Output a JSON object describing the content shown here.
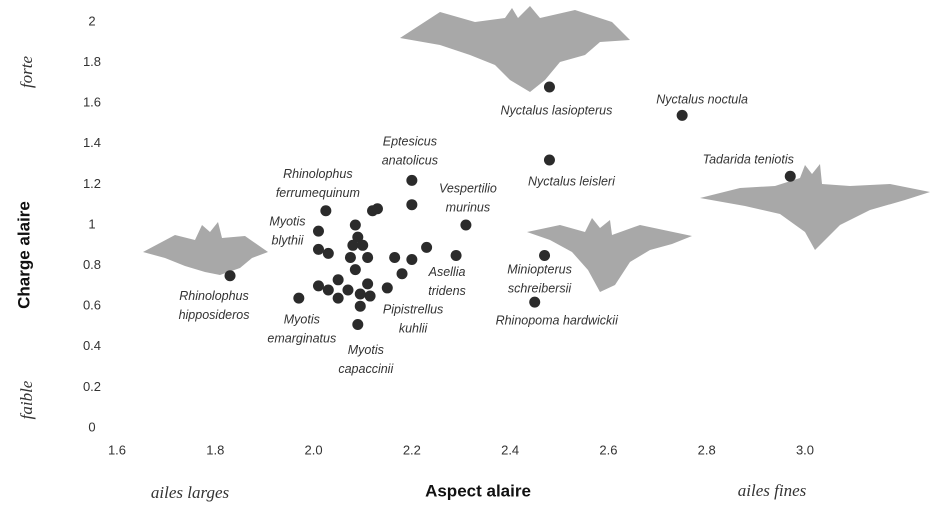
{
  "chart_data": {
    "type": "scatter",
    "xlabel": "Aspect alaire",
    "ylabel": "Charge alaire",
    "x_low_label": "ailes larges",
    "x_high_label": "ailes fines",
    "y_high_label": "forte",
    "y_low_label": "faible",
    "color": "#2b2b2b",
    "xlim": [
      1.6,
      3.0
    ],
    "xticks": [
      1.6,
      1.8,
      {
        "value": 2.0,
        "label": "2.0"
      },
      2.2,
      2.4,
      2.6,
      2.8,
      {
        "value": 3.0,
        "label": "3.0"
      }
    ],
    "ylim": [
      0,
      2
    ],
    "yticks": [
      0,
      0.2,
      0.4,
      0.6,
      0.8,
      1,
      1.2,
      1.4,
      1.6,
      1.8,
      2
    ],
    "x": [
      2.48,
      2.75,
      2.48,
      2.97,
      2.2,
      2.31,
      2.025,
      2.01,
      1.83,
      1.97,
      2.09,
      2.115,
      2.18,
      2.47,
      2.45,
      2.12,
      2.13,
      2.2,
      2.085,
      2.09,
      2.08,
      2.1,
      2.11,
      2.075,
      2.03,
      2.01,
      2.165,
      2.23,
      2.2,
      2.29,
      2.15,
      2.11,
      2.085,
      2.05,
      2.01,
      2.03,
      2.07,
      2.05,
      2.095,
      2.095
    ],
    "y": [
      1.68,
      1.54,
      1.32,
      1.24,
      1.22,
      1.0,
      1.07,
      0.97,
      0.75,
      0.64,
      0.51,
      0.65,
      0.76,
      0.85,
      0.62,
      1.07,
      1.08,
      1.1,
      1.0,
      0.94,
      0.9,
      0.9,
      0.84,
      0.84,
      0.86,
      0.88,
      0.84,
      0.89,
      0.83,
      0.85,
      0.69,
      0.71,
      0.78,
      0.73,
      0.7,
      0.68,
      0.68,
      0.64,
      0.66,
      0.6
    ],
    "labels": [
      [
        "Nyctalus lasiopterus"
      ],
      [
        "Nyctalus noctula"
      ],
      [
        "Nyctalus leisleri"
      ],
      [
        "Tadarida teniotis"
      ],
      [
        "Eptesicus",
        "anatolicus"
      ],
      [
        "Vespertilio",
        "murinus"
      ],
      [
        "Rhinolophus",
        "ferrumequinum"
      ],
      [
        "Myotis",
        "blythii"
      ],
      [
        "Rhinolophus",
        "hipposideros"
      ],
      [
        "Myotis",
        "emarginatus"
      ],
      [
        "Myotis",
        "capaccinii"
      ],
      [
        "Pipistrellus",
        "kuhlii"
      ],
      [
        "Asellia",
        "tridens"
      ],
      [
        "Miniopterus",
        "schreibersii"
      ],
      [
        "Rhinopoma hardwickii"
      ],
      null,
      null,
      null,
      null,
      null,
      null,
      null,
      null,
      null,
      null,
      null,
      null,
      null,
      null,
      null,
      null,
      null,
      null,
      null,
      null,
      null,
      null,
      null,
      null,
      null
    ]
  }
}
